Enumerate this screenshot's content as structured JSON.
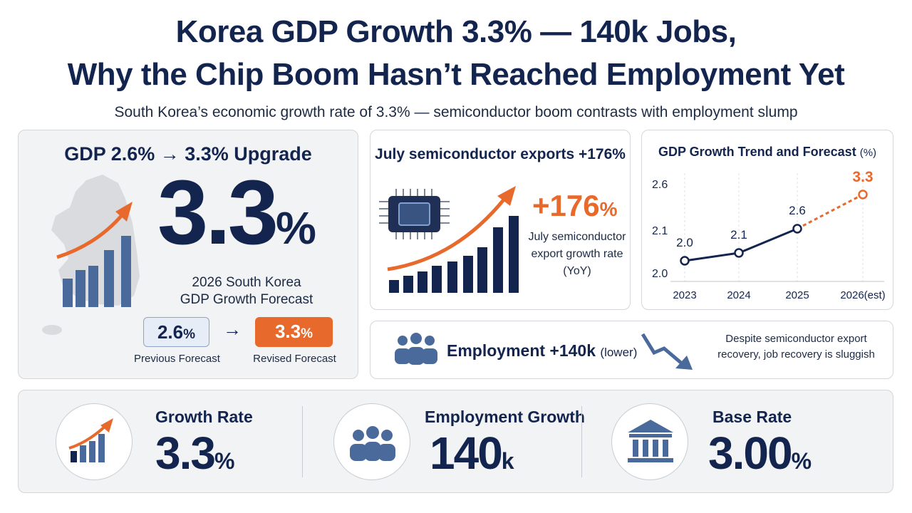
{
  "header": {
    "title_line1": "Korea GDP Growth 3.3% — 140k Jobs,",
    "title_line2": "Why the Chip Boom Hasn’t Reached Employment Yet",
    "subtitle": "South Korea’s economic growth rate of 3.3% — semiconductor boom contrasts with employment slump"
  },
  "gdp_upgrade": {
    "title": "GDP 2.6% → 3.3% Upgrade",
    "value_number": "3.3",
    "value_unit": "%",
    "caption_line1": "2026 South Korea",
    "caption_line2": "GDP Growth Forecast",
    "previous_number": "2.6",
    "previous_unit": "%",
    "previous_label": "Previous Forecast",
    "arrow": "→",
    "revised_number": "3.3",
    "revised_unit": "%",
    "revised_label": "Revised Forecast"
  },
  "semiconductor": {
    "title": "July semiconductor exports +176%",
    "value_number": "+176",
    "value_unit": "%",
    "caption_line1": "July semiconductor",
    "caption_line2": "export growth rate",
    "caption_line3": "(YoY)",
    "icon": "chip-icon"
  },
  "employment": {
    "label": "Employment +140k",
    "label_suffix": "(lower)",
    "note_line1": "Despite semiconductor export",
    "note_line2": "recovery, job recovery is sluggish",
    "icon": "people-icon"
  },
  "gdp_trend": {
    "title": "GDP Growth Trend and Forecast",
    "unit": "(%)"
  },
  "stats": [
    {
      "label": "Growth Rate",
      "value": "3.3",
      "unit": "%",
      "icon": "growth-chart-icon"
    },
    {
      "label": "Employment Growth",
      "value": "140",
      "unit": "k",
      "icon": "people-icon"
    },
    {
      "label": "Base Rate",
      "value": "3.00",
      "unit": "%",
      "icon": "bank-icon"
    }
  ],
  "colors": {
    "navy": "#13254f",
    "orange": "#e8692c",
    "slate": "#4a6a9c",
    "panel": "#f2f3f4"
  },
  "chart_data": {
    "type": "line",
    "title": "GDP Growth Trend and Forecast (%)",
    "categories": [
      "2023",
      "2024",
      "2025",
      "2026(est)"
    ],
    "yticks": [
      "2.6",
      "2.1",
      "2.0"
    ],
    "series": [
      {
        "values": [
          2.0,
          2.1,
          2.6,
          3.3
        ],
        "point_labels": [
          "2.0",
          "2.1",
          "2.6",
          "3.3"
        ],
        "forecast_from_index": 2
      }
    ],
    "xlabel": "",
    "ylabel": ""
  }
}
